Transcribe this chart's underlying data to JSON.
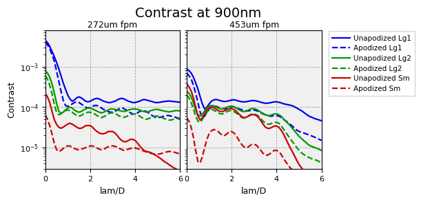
{
  "title": "Contrast at 900nm",
  "subplot_titles": [
    "272um fpm",
    "453um fpm"
  ],
  "xlabel": "lam/D",
  "ylabel": "Contrast",
  "xlim": [
    0,
    6
  ],
  "ylim": [
    3e-06,
    0.008
  ],
  "legend_labels": [
    "Unapodized Lg1",
    "Apodized Lg1",
    "Unapodized Lg2",
    "Apodized Lg2",
    "Unapodized Sm",
    "Apodized Sm"
  ],
  "colors": [
    "#0000ee",
    "#0000ee",
    "#009900",
    "#009900",
    "#cc0000",
    "#cc0000"
  ],
  "linestyles": [
    "-",
    "--",
    "-",
    "--",
    "-",
    "--"
  ],
  "linewidth": 1.6,
  "x": [
    0.0,
    0.1,
    0.2,
    0.3,
    0.4,
    0.5,
    0.6,
    0.7,
    0.8,
    0.9,
    1.0,
    1.1,
    1.2,
    1.3,
    1.4,
    1.5,
    1.6,
    1.7,
    1.8,
    1.9,
    2.0,
    2.1,
    2.2,
    2.3,
    2.4,
    2.5,
    2.6,
    2.7,
    2.8,
    2.9,
    3.0,
    3.1,
    3.2,
    3.3,
    3.4,
    3.5,
    3.6,
    3.7,
    3.8,
    3.9,
    4.0,
    4.1,
    4.2,
    4.3,
    4.4,
    4.5,
    4.6,
    4.7,
    4.8,
    4.9,
    5.0,
    5.1,
    5.2,
    5.3,
    5.4,
    5.5,
    5.6,
    5.7,
    5.8,
    5.9,
    6.0
  ],
  "panel1": {
    "unapod_lg1": [
      0.0045,
      0.004,
      0.0032,
      0.0024,
      0.0018,
      0.0013,
      0.0009,
      0.0006,
      0.0004,
      0.00028,
      0.0002,
      0.00016,
      0.00014,
      0.00015,
      0.00017,
      0.00018,
      0.00017,
      0.000155,
      0.00014,
      0.000135,
      0.00014,
      0.00015,
      0.00016,
      0.000165,
      0.00016,
      0.00015,
      0.00014,
      0.000135,
      0.00013,
      0.00013,
      0.000135,
      0.00014,
      0.00015,
      0.00016,
      0.000165,
      0.00016,
      0.00015,
      0.00014,
      0.000135,
      0.00013,
      0.00013,
      0.000135,
      0.00014,
      0.00015,
      0.000155,
      0.00015,
      0.000145,
      0.00014,
      0.000135,
      0.00013,
      0.00013,
      0.000132,
      0.000135,
      0.000138,
      0.00014,
      0.000142,
      0.00014,
      0.000138,
      0.000136,
      0.000134,
      0.000132
    ],
    "apod_lg1": [
      0.004,
      0.0035,
      0.0028,
      0.002,
      0.0014,
      0.0008,
      0.00045,
      0.00025,
      0.00015,
      0.00011,
      0.000105,
      0.00011,
      0.00012,
      0.00013,
      0.000135,
      0.00013,
      0.00012,
      0.00011,
      0.0001,
      9.5e-05,
      9.8e-05,
      0.000105,
      0.00011,
      0.00011,
      0.000105,
      9.5e-05,
      8.8e-05,
      8.2e-05,
      7.8e-05,
      7.5e-05,
      7.5e-05,
      7.8e-05,
      8.5e-05,
      9.2e-05,
      9.5e-05,
      9.2e-05,
      8.5e-05,
      7.8e-05,
      7.2e-05,
      6.8e-05,
      6.8e-05,
      7.2e-05,
      7.8e-05,
      8.2e-05,
      8.2e-05,
      7.8e-05,
      7.2e-05,
      6.5e-05,
      6e-05,
      5.6e-05,
      5.5e-05,
      5.6e-05,
      5.8e-05,
      6e-05,
      6.2e-05,
      6.2e-05,
      6e-05,
      5.8e-05,
      5.6e-05,
      5.4e-05,
      5.2e-05
    ],
    "unapod_lg2": [
      0.0008,
      0.0007,
      0.00055,
      0.00038,
      0.00023,
      0.00013,
      8e-05,
      7e-05,
      7.5e-05,
      8.5e-05,
      9.5e-05,
      0.0001,
      9.5e-05,
      8.5e-05,
      7.8e-05,
      7.5e-05,
      7.8e-05,
      8.5e-05,
      9e-05,
      9.5e-05,
      9.5e-05,
      9e-05,
      8.5e-05,
      8e-05,
      7.5e-05,
      7.2e-05,
      7.5e-05,
      8e-05,
      8.5e-05,
      9e-05,
      9e-05,
      8.8e-05,
      8.5e-05,
      8.2e-05,
      8e-05,
      7.8e-05,
      8e-05,
      8.5e-05,
      8.8e-05,
      9e-05,
      9e-05,
      8.8e-05,
      8.5e-05,
      8e-05,
      7.8e-05,
      7.5e-05,
      7.8e-05,
      8.2e-05,
      8.5e-05,
      8.8e-05,
      8.8e-05,
      8.5e-05,
      8.2e-05,
      8e-05,
      7.8e-05,
      7.6e-05,
      7.8e-05,
      8e-05,
      8.2e-05,
      8.2e-05,
      8e-05
    ],
    "apod_lg2": [
      0.0006,
      0.0005,
      0.00035,
      0.00022,
      0.00012,
      7.5e-05,
      6.5e-05,
      6.8e-05,
      7.5e-05,
      8.2e-05,
      8.5e-05,
      8.2e-05,
      7.5e-05,
      6.8e-05,
      6.2e-05,
      6e-05,
      6.2e-05,
      6.8e-05,
      7.2e-05,
      7.5e-05,
      7.5e-05,
      7.2e-05,
      6.8e-05,
      6.2e-05,
      5.8e-05,
      5.5e-05,
      5.8e-05,
      6.2e-05,
      6.8e-05,
      7.2e-05,
      7.2e-05,
      7e-05,
      6.5e-05,
      6e-05,
      5.8e-05,
      5.6e-05,
      5.8e-05,
      6.2e-05,
      6.5e-05,
      6.8e-05,
      6.8e-05,
      6.5e-05,
      6e-05,
      5.5e-05,
      5.2e-05,
      5e-05,
      5.2e-05,
      5.5e-05,
      5.8e-05,
      6e-05,
      6e-05,
      5.8e-05,
      5.5e-05,
      5.2e-05,
      5e-05,
      4.8e-05,
      4.8e-05,
      5e-05,
      5.2e-05,
      5.2e-05,
      5e-05
    ],
    "unapod_sm": [
      0.00022,
      0.00018,
      0.00013,
      8e-05,
      5e-05,
      3.8e-05,
      3.2e-05,
      3e-05,
      3.2e-05,
      3.5e-05,
      3.8e-05,
      4e-05,
      3.8e-05,
      3.5e-05,
      3.2e-05,
      3e-05,
      3e-05,
      3.2e-05,
      3.5e-05,
      3.5e-05,
      3.5e-05,
      3.2e-05,
      2.8e-05,
      2.5e-05,
      2.3e-05,
      2.2e-05,
      2.2e-05,
      2.3e-05,
      2.5e-05,
      2.5e-05,
      2.5e-05,
      2.3e-05,
      2e-05,
      1.7e-05,
      1.5e-05,
      1.4e-05,
      1.4e-05,
      1.5e-05,
      1.6e-05,
      1.6e-05,
      1.5e-05,
      1.3e-05,
      1.1e-05,
      9.5e-06,
      8.5e-06,
      8e-06,
      7.8e-06,
      7.5e-06,
      7e-06,
      6.5e-06,
      6e-06,
      5.5e-06,
      5e-06,
      4.5e-06,
      4.2e-06,
      3.8e-06,
      3.5e-06,
      3.2e-06,
      3e-06,
      2.8e-06,
      2.5e-06
    ],
    "apod_sm": [
      6.5e-05,
      5e-05,
      3.5e-05,
      2.2e-05,
      1.3e-05,
      9e-06,
      8e-06,
      8.5e-06,
      9.5e-06,
      1.05e-05,
      1.1e-05,
      1.1e-05,
      1e-05,
      9.5e-06,
      9e-06,
      8.8e-06,
      9e-06,
      9.5e-06,
      1e-05,
      1.05e-05,
      1.1e-05,
      1.1e-05,
      1.05e-05,
      9.8e-06,
      9.2e-06,
      8.8e-06,
      9e-06,
      9.8e-06,
      1.05e-05,
      1.1e-05,
      1.1e-05,
      1.08e-05,
      1.02e-05,
      9.5e-06,
      9e-06,
      8.5e-06,
      8.8e-06,
      9.2e-06,
      9.5e-06,
      9.8e-06,
      9.8e-06,
      9.5e-06,
      9e-06,
      8.5e-06,
      8.2e-06,
      7.8e-06,
      7.5e-06,
      7.2e-06,
      7e-06,
      6.8e-06,
      6.8e-06,
      7e-06,
      7.2e-06,
      7.5e-06,
      7.8e-06,
      8e-06,
      8e-06,
      7.8e-06,
      7.5e-06,
      7.2e-06,
      7e-06
    ]
  },
  "panel2": {
    "unapod_lg1": [
      0.0009,
      0.0008,
      0.0007,
      0.00055,
      0.0004,
      0.00028,
      0.00018,
      0.00012,
      9e-05,
      0.0001,
      0.00012,
      0.00014,
      0.00015,
      0.000155,
      0.00015,
      0.000145,
      0.00014,
      0.000138,
      0.00014,
      0.000145,
      0.00015,
      0.000152,
      0.000148,
      0.000142,
      0.000138,
      0.000135,
      0.000135,
      0.000138,
      0.000142,
      0.000145,
      0.000145,
      0.000142,
      0.000138,
      0.000132,
      0.000128,
      0.000125,
      0.000125,
      0.000128,
      0.000132,
      0.000135,
      0.000135,
      0.000132,
      0.000128,
      0.000122,
      0.000118,
      0.000115,
      0.000112,
      0.000108,
      0.000102,
      9.5e-05,
      8.8e-05,
      8.2e-05,
      7.5e-05,
      6.8e-05,
      6.2e-05,
      5.8e-05,
      5.5e-05,
      5.2e-05,
      5e-05,
      4.8e-05,
      4.6e-05
    ],
    "apod_lg1": [
      0.0007,
      0.0006,
      0.0005,
      0.00035,
      0.00022,
      0.00013,
      7.5e-05,
      5.5e-05,
      6e-05,
      7.5e-05,
      9e-05,
      0.0001,
      0.000105,
      0.000105,
      0.0001,
      9.5e-05,
      9.2e-05,
      9e-05,
      9.2e-05,
      9.8e-05,
      0.000102,
      0.000102,
      9.8e-05,
      9.2e-05,
      8.8e-05,
      8.5e-05,
      8.2e-05,
      8e-05,
      8.2e-05,
      8.5e-05,
      8.5e-05,
      8.2e-05,
      7.8e-05,
      7.2e-05,
      6.8e-05,
      6.5e-05,
      6.2e-05,
      6e-05,
      6e-05,
      6.2e-05,
      6.2e-05,
      6e-05,
      5.6e-05,
      5e-05,
      4.6e-05,
      4.2e-05,
      3.8e-05,
      3.4e-05,
      3e-05,
      2.7e-05,
      2.5e-05,
      2.4e-05,
      2.3e-05,
      2.2e-05,
      2.1e-05,
      2e-05,
      1.9e-05,
      1.8e-05,
      1.7e-05,
      1.6e-05,
      1.5e-05
    ],
    "unapod_lg2": [
      0.00025,
      0.00022,
      0.00018,
      0.00013,
      8.5e-05,
      6.5e-05,
      6e-05,
      6.8e-05,
      8e-05,
      9.5e-05,
      0.000105,
      0.00011,
      0.000108,
      0.000102,
      9.5e-05,
      9e-05,
      9e-05,
      9.5e-05,
      0.0001,
      0.000105,
      0.000105,
      0.000102,
      9.5e-05,
      8.8e-05,
      8.2e-05,
      7.8e-05,
      7.8e-05,
      8.2e-05,
      8.8e-05,
      9.2e-05,
      9.2e-05,
      8.8e-05,
      8.2e-05,
      7.5e-05,
      7e-05,
      6.5e-05,
      6.2e-05,
      6.2e-05,
      6.5e-05,
      6.8e-05,
      6.8e-05,
      6.5e-05,
      6e-05,
      5.2e-05,
      4.5e-05,
      4e-05,
      3.5e-05,
      3e-05,
      2.6e-05,
      2.2e-05,
      1.9e-05,
      1.7e-05,
      1.5e-05,
      1.35e-05,
      1.2e-05,
      1.1e-05,
      1.05e-05,
      1e-05,
      9.5e-06,
      9e-06,
      8.5e-06
    ],
    "apod_lg2": [
      0.0002,
      0.00017,
      0.00013,
      9e-05,
      6e-05,
      4.5e-05,
      4.2e-05,
      5e-05,
      6.2e-05,
      7.5e-05,
      8.5e-05,
      8.8e-05,
      8.5e-05,
      7.8e-05,
      7.2e-05,
      6.8e-05,
      6.8e-05,
      7.2e-05,
      7.8e-05,
      8.2e-05,
      8.2e-05,
      7.8e-05,
      7.2e-05,
      6.5e-05,
      5.8e-05,
      5.4e-05,
      5.4e-05,
      5.8e-05,
      6.4e-05,
      6.8e-05,
      6.8e-05,
      6.5e-05,
      6e-05,
      5.2e-05,
      4.5e-05,
      4e-05,
      3.8e-05,
      3.8e-05,
      4e-05,
      4.2e-05,
      4.2e-05,
      4e-05,
      3.5e-05,
      2.9e-05,
      2.4e-05,
      2e-05,
      1.7e-05,
      1.4e-05,
      1.2e-05,
      1e-05,
      8.5e-06,
      7.5e-06,
      6.8e-06,
      6.2e-06,
      5.8e-06,
      5.5e-06,
      5.2e-06,
      5e-06,
      4.8e-06,
      4.5e-06,
      4.2e-06
    ],
    "unapod_sm": [
      0.00038,
      0.00032,
      0.00025,
      0.00017,
      0.0001,
      6e-05,
      4.8e-05,
      5.5e-05,
      7e-05,
      8.5e-05,
      9.5e-05,
      0.0001,
      9.8e-05,
      9e-05,
      8.2e-05,
      7.8e-05,
      7.8e-05,
      8.2e-05,
      8.8e-05,
      9.2e-05,
      9.2e-05,
      8.8e-05,
      8e-05,
      7e-05,
      6.2e-05,
      5.6e-05,
      5.5e-05,
      5.8e-05,
      6.2e-05,
      6.5e-05,
      6.5e-05,
      6.2e-05,
      5.5e-05,
      4.6e-05,
      3.8e-05,
      3.2e-05,
      3e-05,
      3e-05,
      3.2e-05,
      3.4e-05,
      3.4e-05,
      3.2e-05,
      2.7e-05,
      2.2e-05,
      1.7e-05,
      1.3e-05,
      1e-05,
      8e-06,
      6.2e-06,
      4.8e-06,
      3.8e-06,
      3.2e-06,
      2.7e-06,
      2.3e-06,
      2e-06,
      1.8e-06,
      1.6e-06,
      1.5e-06,
      1.4e-06,
      1.3e-06,
      1.2e-06
    ],
    "apod_sm": [
      5.5e-05,
      4.5e-05,
      3.2e-05,
      1.8e-05,
      8.5e-06,
      4.5e-06,
      4.2e-06,
      6e-06,
      1e-05,
      1.6e-05,
      2.2e-05,
      2.6e-05,
      2.8e-05,
      2.7e-05,
      2.5e-05,
      2.2e-05,
      2e-05,
      2e-05,
      2.2e-05,
      2.5e-05,
      2.5e-05,
      2.3e-05,
      2e-05,
      1.6e-05,
      1.3e-05,
      1.1e-05,
      1e-05,
      1e-05,
      1.1e-05,
      1.2e-05,
      1.2e-05,
      1.15e-05,
      1e-05,
      8.5e-06,
      7.2e-06,
      6.5e-06,
      6.5e-06,
      7e-06,
      7.8e-06,
      8.5e-06,
      8.5e-06,
      8e-06,
      6.8e-06,
      5.5e-06,
      4.5e-06,
      3.8e-06,
      3.2e-06,
      2.8e-06,
      2.4e-06,
      2e-06,
      1.7e-06,
      1.5e-06,
      1.4e-06,
      1.3e-06,
      1.2e-06,
      1.1e-06,
      1e-06,
      9.5e-07,
      9e-07,
      8.5e-07,
      8e-07
    ]
  }
}
